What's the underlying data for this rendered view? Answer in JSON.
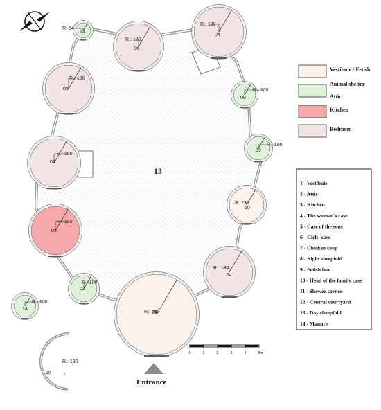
{
  "courtyard_label": "13",
  "huts": [
    {
      "id": "A",
      "label": "14",
      "radius_text": "R: 64",
      "fill": "shelter"
    },
    {
      "id": "B",
      "label": "06",
      "radius_text": "R.: 180",
      "fill": "bedroom"
    },
    {
      "id": "C",
      "label": "04",
      "radius_text": "R.: 180",
      "fill": "bedroom"
    },
    {
      "id": "D",
      "label": "05",
      "radius_text": "R.: 180",
      "fill": "bedroom"
    },
    {
      "id": "E",
      "label": "08",
      "radius_text": "R.: 100",
      "fill": "shelter"
    },
    {
      "id": "F",
      "label": "04",
      "radius_text": "R.: 180",
      "fill": "bedroom"
    },
    {
      "id": "G",
      "label": "09",
      "radius_text": "R.: 100",
      "fill": "shelter"
    },
    {
      "id": "H",
      "label": "10",
      "radius_text": "R: 130",
      "fill": "vestibule"
    },
    {
      "id": "I",
      "label": "03",
      "radius_text": "R.: 180",
      "fill": "kitchen"
    },
    {
      "id": "J",
      "label": "14",
      "radius_text": "R.: 180",
      "fill": "bedroom"
    },
    {
      "id": "K",
      "label": "02",
      "radius_text": "R.: 100",
      "fill": "shelter"
    },
    {
      "id": "L",
      "label": "01",
      "radius_text": "R.: 280",
      "fill": "vestibule"
    },
    {
      "id": "M",
      "label": "14",
      "radius_text": "R.: 100",
      "fill": "shelter"
    },
    {
      "id": "N",
      "label": "15",
      "radius_text": "R.: 190",
      "fill": "none"
    }
  ],
  "legend": [
    {
      "key": "vestibule",
      "label": "Vestibule / Fetish",
      "color": "#fbf2ec"
    },
    {
      "key": "shelter",
      "label": "Animal shelter",
      "label2": "Attic",
      "color": "#ddf2d8"
    },
    {
      "key": "kitchen",
      "label": "Kitchen",
      "color": "#f7a8a8"
    },
    {
      "key": "bedroom",
      "label": "Bedroom",
      "color": "#f1e4e2"
    }
  ],
  "list": [
    "1 - Vestibule",
    "2 - Attic",
    "3 - Kitchen",
    "4 - The woman's case",
    "5 - Case of the sons",
    "6 - Girls' case",
    "7 - Chicken coop",
    "8 - Night sheepfold",
    "9 - Fetish box",
    "10 - Head of the family case",
    "11 - Shower corner",
    "12 - Central courtyard",
    "13 - Day sheepfold",
    "14 - Manure"
  ],
  "scale": {
    "ticks": [
      "0",
      "1",
      "2",
      "3",
      "4",
      "5m"
    ]
  },
  "entrance_label": "Entrance",
  "colors": {
    "vestibule": "#fbf2ec",
    "shelter": "#ddf2d8",
    "kitchen": "#f7a8a8",
    "bedroom": "#f1e4e2",
    "wall": "#9a9a9a",
    "entrance_arrow": "#8a8a8a"
  }
}
